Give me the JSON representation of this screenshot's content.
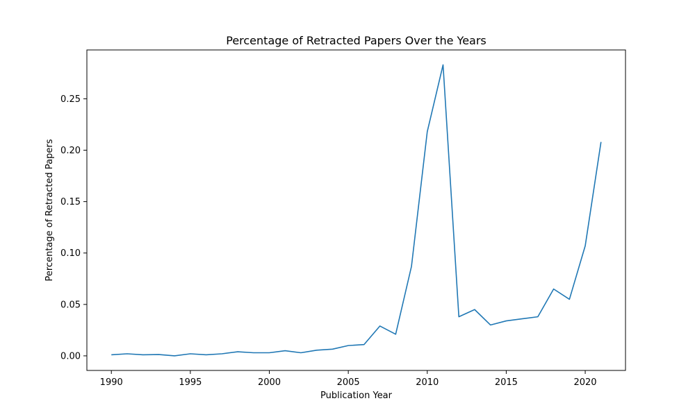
{
  "chart_data": {
    "type": "line",
    "title": "Percentage of Retracted Papers Over the Years",
    "xlabel": "Publication Year",
    "ylabel": "Percentage of Retracted Papers",
    "xlim": [
      1988.45,
      2022.55
    ],
    "ylim": [
      -0.0142,
      0.2975
    ],
    "x_ticks": [
      1990,
      1995,
      2000,
      2005,
      2010,
      2015,
      2020
    ],
    "y_ticks": [
      "0.00",
      "0.05",
      "0.10",
      "0.15",
      "0.20",
      "0.25"
    ],
    "grid": false,
    "legend": "none",
    "series": [
      {
        "color": "#1f77b4",
        "x": [
          1990,
          1991,
          1992,
          1993,
          1994,
          1995,
          1996,
          1997,
          1998,
          1999,
          2000,
          2001,
          2002,
          2003,
          2004,
          2005,
          2006,
          2007,
          2008,
          2009,
          2010,
          2011,
          2012,
          2013,
          2014,
          2015,
          2016,
          2017,
          2018,
          2019,
          2020,
          2021
        ],
        "y": [
          0.001,
          0.002,
          0.001,
          0.0013,
          0.0,
          0.002,
          0.001,
          0.002,
          0.004,
          0.003,
          0.003,
          0.005,
          0.003,
          0.0055,
          0.0065,
          0.01,
          0.011,
          0.029,
          0.021,
          0.087,
          0.218,
          0.283,
          0.038,
          0.045,
          0.03,
          0.034,
          0.036,
          0.038,
          0.065,
          0.055,
          0.107,
          0.208
        ]
      }
    ]
  }
}
